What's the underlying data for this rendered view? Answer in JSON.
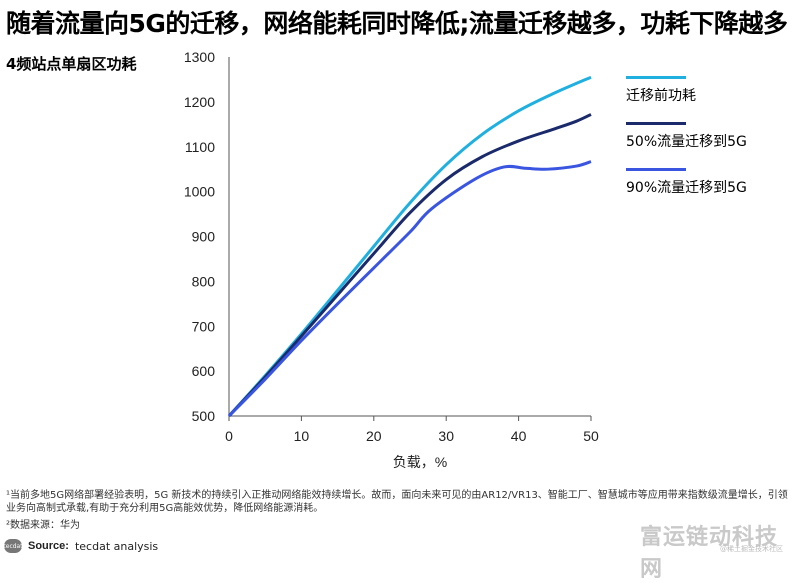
{
  "title": "随着流量向5G的迁移，网络能耗同时降低;流量迁移越多，功耗下降越多",
  "chart_data": {
    "type": "line",
    "ylabel": "4频站点单扇区功耗",
    "xlabel": "负载，%",
    "xlim": [
      0,
      50
    ],
    "ylim": [
      500,
      1300
    ],
    "xticks": [
      0,
      10,
      20,
      30,
      40,
      50
    ],
    "yticks": [
      500,
      600,
      700,
      800,
      900,
      1000,
      1100,
      1200,
      1300
    ],
    "grid": false,
    "legend_position": "right",
    "series": [
      {
        "name": "迁移前功耗",
        "color": "#1fb0e0",
        "x": [
          0,
          5,
          10,
          15,
          20,
          25,
          30,
          35,
          40,
          45,
          50
        ],
        "y": [
          500,
          590,
          683,
          780,
          878,
          975,
          1060,
          1128,
          1180,
          1220,
          1255
        ]
      },
      {
        "name": "50%流量迁移到5G",
        "color": "#1a2a6b",
        "x": [
          0,
          5,
          10,
          15,
          20,
          25,
          30,
          35,
          40,
          45,
          48,
          50
        ],
        "y": [
          500,
          587,
          678,
          770,
          862,
          953,
          1027,
          1078,
          1113,
          1140,
          1157,
          1172
        ]
      },
      {
        "name": "90%流量迁移到5G",
        "color": "#3a55e0",
        "x": [
          0,
          5,
          10,
          15,
          20,
          25,
          28,
          34,
          38,
          41,
          44,
          48,
          50
        ],
        "y": [
          500,
          582,
          668,
          750,
          830,
          910,
          962,
          1028,
          1055,
          1052,
          1050,
          1057,
          1067
        ]
      }
    ]
  },
  "footnotes": [
    "¹当前多地5G网络部署经验表明，5G 新技术的持续引入正推动网络能效持续增长。故而，面向未来可见的由AR12/VR13、智能工厂、智慧城市等应用带来指数级流量增长，引领业务向高制式承载,有助于充分利用5G高能效优势，降低网络能源消耗。",
    "²数据来源：华为"
  ],
  "source": {
    "logo_text": "tecdat",
    "label": "Source:",
    "text": "tecdat analysis"
  },
  "watermark": {
    "main": "富运链动科技网",
    "sub": "@稀土掘金技术社区"
  }
}
